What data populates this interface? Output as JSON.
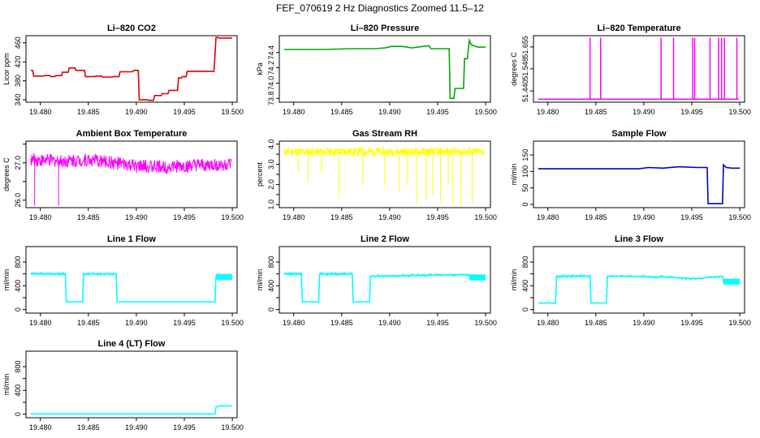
{
  "figure_title": "FEF_070619  2 Hz Diagnostics Zoomed 11.5–12",
  "colors": {
    "co2": "#dd0000",
    "pressure": "#00aa00",
    "temperature": "#ff00ff",
    "ambient": "#ff00ff",
    "rh": "#ffff00",
    "sample_flow": "#0000cc",
    "line_flow": "#00ffff"
  },
  "chart_data": [
    {
      "type": "line",
      "title": "Li–820 CO2",
      "xlabel": "",
      "ylabel": "Licor ppm",
      "xlim": [
        19.4785,
        19.5005
      ],
      "ylim": [
        335,
        475
      ],
      "xticks": [
        19.48,
        19.485,
        19.49,
        19.495,
        19.5
      ],
      "xtick_labels": [
        "19.480",
        "19.485",
        "19.490",
        "19.495",
        "19.500"
      ],
      "yticks": [
        340,
        380,
        420,
        460
      ],
      "ytick_labels": [
        "340",
        "380",
        "420",
        "460"
      ],
      "color": "#dd0000",
      "series": [
        {
          "name": "CO2",
          "x": [
            19.479,
            19.4792,
            19.4793,
            19.4803,
            19.4804,
            19.481,
            19.4811,
            19.4815,
            19.4816,
            19.4822,
            19.4823,
            19.4829,
            19.483,
            19.4836,
            19.4837,
            19.4846,
            19.4847,
            19.4857,
            19.4858,
            19.4864,
            19.4865,
            19.4875,
            19.4876,
            19.4882,
            19.4883,
            19.4896,
            19.4897,
            19.4902,
            19.4903,
            19.4912,
            19.4913,
            19.4918,
            19.4919,
            19.4926,
            19.4927,
            19.4933,
            19.4934,
            19.4943,
            19.4944,
            19.4947,
            19.4948,
            19.4952,
            19.4953,
            19.4981,
            19.4983,
            19.4985,
            19.4986,
            19.5
          ],
          "y": [
            402,
            402,
            390,
            390,
            391,
            391,
            389,
            389,
            391,
            391,
            398,
            398,
            407,
            407,
            402,
            402,
            389,
            389,
            390,
            390,
            388,
            388,
            389,
            389,
            399,
            399,
            402,
            402,
            340,
            340,
            339,
            339,
            349,
            349,
            353,
            353,
            360,
            360,
            386,
            386,
            389,
            389,
            400,
            400,
            471,
            471,
            470,
            470
          ]
        }
      ]
    },
    {
      "type": "line",
      "title": "Li–820 Pressure",
      "xlabel": "",
      "ylabel": "kPa",
      "xlim": [
        19.4785,
        19.5005
      ],
      "ylim": [
        73.75,
        74.62
      ],
      "xticks": [
        19.48,
        19.485,
        19.49,
        19.495,
        19.5
      ],
      "xtick_labels": [
        "19.480",
        "19.485",
        "19.490",
        "19.495",
        "19.500"
      ],
      "yticks": [
        73.8,
        74.0,
        74.2,
        74.4
      ],
      "ytick_labels": [
        "73.8",
        "74.0",
        "74.2",
        "74.4"
      ],
      "color": "#00aa00",
      "series": [
        {
          "name": "Pressure",
          "x": [
            19.479,
            19.483,
            19.486,
            19.4885,
            19.4895,
            19.4902,
            19.4913,
            19.4923,
            19.4935,
            19.4941,
            19.4943,
            19.4962,
            19.4963,
            19.4967,
            19.4968,
            19.4977,
            19.4978,
            19.4981,
            19.4983,
            19.4985,
            19.4992,
            19.5
          ],
          "y": [
            74.44,
            74.44,
            74.45,
            74.45,
            74.46,
            74.48,
            74.48,
            74.46,
            74.48,
            74.49,
            74.45,
            74.45,
            73.8,
            73.8,
            73.93,
            73.93,
            74.32,
            74.32,
            74.56,
            74.5,
            74.47,
            74.47
          ]
        }
      ]
    },
    {
      "type": "line",
      "title": "Li–820 Temperature",
      "xlabel": "",
      "ylabel": "degrees C",
      "xlim": [
        19.4785,
        19.5005
      ],
      "ylim": [
        51.385,
        51.71
      ],
      "xticks": [
        19.48,
        19.485,
        19.49,
        19.495,
        19.5
      ],
      "xtick_labels": [
        "19.480",
        "19.485",
        "19.490",
        "19.495",
        "19.500"
      ],
      "yticks": [
        51.44,
        51.548,
        51.655
      ],
      "ytick_labels": [
        "51.440",
        "51.548",
        "51.655"
      ],
      "color": "#ff00ff",
      "baseline": 51.4,
      "spikes": [
        {
          "x": 19.4844,
          "top": 51.7
        },
        {
          "x": 19.4855,
          "top": 51.7
        },
        {
          "x": 19.4918,
          "top": 51.7
        },
        {
          "x": 19.4931,
          "top": 51.7
        },
        {
          "x": 19.4951,
          "top": 51.7
        },
        {
          "x": 19.4953,
          "top": 51.7
        },
        {
          "x": 19.4969,
          "top": 51.7
        },
        {
          "x": 19.4978,
          "top": 51.7
        },
        {
          "x": 19.4981,
          "top": 51.7
        },
        {
          "x": 19.4984,
          "top": 51.7
        },
        {
          "x": 19.4997,
          "top": 51.7
        }
      ]
    },
    {
      "type": "line",
      "title": "Ambient Box Temperature",
      "xlabel": "",
      "ylabel": "degrees C",
      "xlim": [
        19.4785,
        19.5005
      ],
      "ylim": [
        25.8,
        27.58
      ],
      "xticks": [
        19.48,
        19.485,
        19.49,
        19.495,
        19.5
      ],
      "xtick_labels": [
        "19.480",
        "19.485",
        "19.490",
        "19.495",
        "19.500"
      ],
      "yticks": [
        26.0,
        26.5,
        27.0,
        27.5
      ],
      "ytick_labels": [
        "26.0",
        "",
        "27.0",
        ""
      ],
      "color": "#ff00ff",
      "band": {
        "x": [
          19.479,
          19.482,
          19.485,
          19.487,
          19.488,
          19.49,
          19.495,
          19.498,
          19.4999
        ],
        "center": [
          27.08,
          27.05,
          27.08,
          27.02,
          26.98,
          26.9,
          26.9,
          26.93,
          26.95
        ],
        "noise": 0.18
      },
      "spikes": [
        {
          "x": 19.4794,
          "bottom": 25.85
        },
        {
          "x": 19.4819,
          "bottom": 25.85
        }
      ]
    },
    {
      "type": "line",
      "title": "Gas Stream RH",
      "xlabel": "",
      "ylabel": "percent",
      "xlim": [
        19.4785,
        19.5005
      ],
      "ylim": [
        0.85,
        4.15
      ],
      "xticks": [
        19.48,
        19.485,
        19.49,
        19.495,
        19.5
      ],
      "xtick_labels": [
        "19.480",
        "19.485",
        "19.490",
        "19.495",
        "19.500"
      ],
      "yticks": [
        1.0,
        1.5,
        2.0,
        2.5,
        3.0,
        3.5,
        4.0
      ],
      "ytick_labels": [
        "1.0",
        "",
        "2.0",
        "",
        "3.0",
        "",
        "4.0"
      ],
      "color": "#ffff00",
      "band": {
        "x": [
          19.479,
          19.4999
        ],
        "center": [
          3.62,
          3.62
        ],
        "noise": 0.22
      },
      "spikes": [
        {
          "x": 19.4805,
          "bottom": 2.6
        },
        {
          "x": 19.4815,
          "bottom": 2.1
        },
        {
          "x": 19.4829,
          "bottom": 2.6
        },
        {
          "x": 19.4847,
          "bottom": 1.3
        },
        {
          "x": 19.4872,
          "bottom": 2.0
        },
        {
          "x": 19.4895,
          "bottom": 2.0
        },
        {
          "x": 19.491,
          "bottom": 1.6
        },
        {
          "x": 19.4918,
          "bottom": 2.0
        },
        {
          "x": 19.4928,
          "bottom": 1.0
        },
        {
          "x": 19.4938,
          "bottom": 1.2
        },
        {
          "x": 19.4945,
          "bottom": 1.5
        },
        {
          "x": 19.4953,
          "bottom": 1.1
        },
        {
          "x": 19.4961,
          "bottom": 2.0
        },
        {
          "x": 19.4966,
          "bottom": 1.0
        },
        {
          "x": 19.4974,
          "bottom": 0.95
        },
        {
          "x": 19.4986,
          "bottom": 1.0
        }
      ]
    },
    {
      "type": "line",
      "title": "Sample Flow",
      "xlabel": "",
      "ylabel": "ml/min",
      "xlim": [
        19.4785,
        19.5005
      ],
      "ylim": [
        -10,
        192
      ],
      "xticks": [
        19.48,
        19.485,
        19.49,
        19.495,
        19.5
      ],
      "xtick_labels": [
        "19.480",
        "19.485",
        "19.490",
        "19.495",
        "19.500"
      ],
      "yticks": [
        0,
        50,
        100,
        150
      ],
      "ytick_labels": [
        "0",
        "50",
        "100",
        "150"
      ],
      "color": "#0000cc",
      "series": [
        {
          "name": "Sample Flow",
          "x": [
            19.479,
            19.482,
            19.486,
            19.4895,
            19.4905,
            19.492,
            19.4935,
            19.494,
            19.4955,
            19.4966,
            19.4967,
            19.4982,
            19.4983,
            19.4986,
            19.4992,
            19.5
          ],
          "y": [
            108,
            108,
            108,
            108,
            112,
            110,
            114,
            114,
            112,
            112,
            2,
            2,
            120,
            112,
            110,
            110
          ]
        }
      ]
    },
    {
      "type": "line",
      "title": "Line 1 Flow",
      "xlabel": "",
      "ylabel": "ml/min",
      "xlim": [
        19.4785,
        19.5005
      ],
      "ylim": [
        -60,
        1060
      ],
      "xticks": [
        19.48,
        19.485,
        19.49,
        19.495,
        19.5
      ],
      "xtick_labels": [
        "19.480",
        "19.485",
        "19.490",
        "19.495",
        "19.500"
      ],
      "yticks": [
        0,
        200,
        400,
        600,
        800
      ],
      "ytick_labels": [
        "0",
        "400",
        "800"
      ],
      "ytick_label_values": [
        0,
        400,
        800
      ],
      "color": "#00ffff",
      "series": [
        {
          "name": "Line 1 Flow",
          "x": [
            19.479,
            19.4826,
            19.4827,
            19.4844,
            19.4845,
            19.4879,
            19.488,
            19.4982,
            19.4983,
            19.5
          ],
          "y": [
            600,
            600,
            130,
            130,
            600,
            600,
            130,
            130,
            560,
            540
          ]
        }
      ],
      "noisy_segments": [
        {
          "from": 19.479,
          "to": 19.4826
        },
        {
          "from": 19.4845,
          "to": 19.4879
        }
      ],
      "thick_tail": {
        "from": 19.4983,
        "to": 19.5,
        "low": 500,
        "high": 600
      }
    },
    {
      "type": "line",
      "title": "Line 2 Flow",
      "xlabel": "",
      "ylabel": "ml/min",
      "xlim": [
        19.4785,
        19.5005
      ],
      "ylim": [
        -60,
        1060
      ],
      "xticks": [
        19.48,
        19.485,
        19.49,
        19.495,
        19.5
      ],
      "xtick_labels": [
        "19.480",
        "19.485",
        "19.490",
        "19.495",
        "19.500"
      ],
      "yticks": [
        0,
        200,
        400,
        600,
        800
      ],
      "ytick_labels": [
        "0",
        "400",
        "800"
      ],
      "ytick_label_values": [
        0,
        400,
        800
      ],
      "color": "#00ffff",
      "series": [
        {
          "name": "Line 2 Flow",
          "x": [
            19.479,
            19.4808,
            19.4809,
            19.4826,
            19.4827,
            19.4861,
            19.4862,
            19.4879,
            19.488,
            19.495,
            19.4982,
            19.4983,
            19.5
          ],
          "y": [
            600,
            600,
            130,
            130,
            600,
            600,
            130,
            130,
            560,
            580,
            590,
            550,
            550
          ]
        }
      ],
      "noisy_segments": [
        {
          "from": 19.479,
          "to": 19.4808
        },
        {
          "from": 19.4827,
          "to": 19.4861
        },
        {
          "from": 19.488,
          "to": 19.4982
        }
      ],
      "thick_tail": {
        "from": 19.4983,
        "to": 19.5,
        "low": 490,
        "high": 590
      }
    },
    {
      "type": "line",
      "title": "Line 3 Flow",
      "xlabel": "",
      "ylabel": "ml/min",
      "xlim": [
        19.4785,
        19.5005
      ],
      "ylim": [
        -60,
        1060
      ],
      "xticks": [
        19.48,
        19.485,
        19.49,
        19.495,
        19.5
      ],
      "xtick_labels": [
        "19.480",
        "19.485",
        "19.490",
        "19.495",
        "19.500"
      ],
      "yticks": [
        0,
        200,
        400,
        600,
        800
      ],
      "ytick_labels": [
        "0",
        "400",
        "800"
      ],
      "ytick_label_values": [
        0,
        400,
        800
      ],
      "color": "#00ffff",
      "series": [
        {
          "name": "Line 3 Flow",
          "x": [
            19.479,
            19.4808,
            19.4809,
            19.4844,
            19.4845,
            19.4861,
            19.4862,
            19.492,
            19.4955,
            19.4982,
            19.4983,
            19.5
          ],
          "y": [
            110,
            110,
            560,
            560,
            110,
            110,
            560,
            550,
            520,
            560,
            470,
            470
          ]
        }
      ],
      "noisy_segments": [
        {
          "from": 19.4809,
          "to": 19.4844
        },
        {
          "from": 19.4862,
          "to": 19.4982
        }
      ],
      "thick_tail": {
        "from": 19.4983,
        "to": 19.5,
        "low": 420,
        "high": 520
      }
    },
    {
      "type": "line",
      "title": "Line 4 (LT) Flow",
      "xlabel": "",
      "ylabel": "ml/min",
      "xlim": [
        19.4785,
        19.5005
      ],
      "ylim": [
        -60,
        1060
      ],
      "xticks": [
        19.48,
        19.485,
        19.49,
        19.495,
        19.5
      ],
      "xtick_labels": [
        "19.480",
        "19.485",
        "19.490",
        "19.495",
        "19.500"
      ],
      "yticks": [
        0,
        200,
        400,
        600,
        800
      ],
      "ytick_labels": [
        "0",
        "400",
        "800"
      ],
      "ytick_label_values": [
        0,
        400,
        800
      ],
      "color": "#00ffff",
      "series": [
        {
          "name": "Line 4 (LT) Flow",
          "x": [
            19.479,
            19.4982,
            19.4983,
            19.4985,
            19.4986,
            19.5
          ],
          "y": [
            5,
            5,
            120,
            130,
            140,
            140
          ]
        }
      ]
    }
  ]
}
